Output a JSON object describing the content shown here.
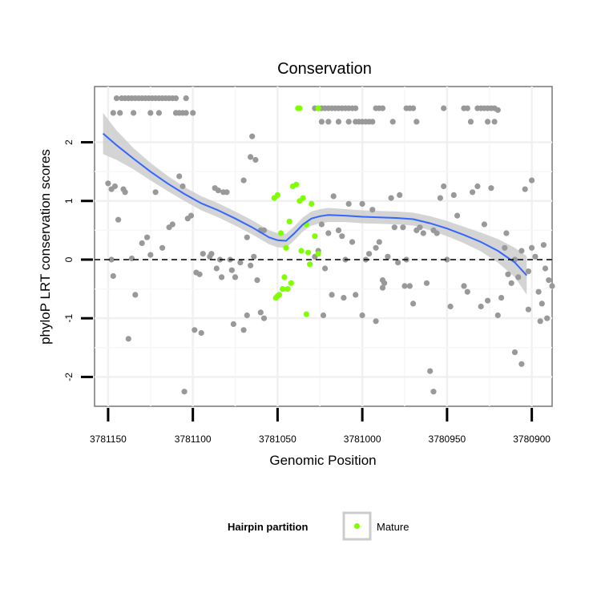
{
  "chart_data": {
    "type": "scatter",
    "title": "Conservation",
    "xlabel": "Genomic Position",
    "ylabel": "phyloP LRT conservation scores",
    "x_reversed": true,
    "xlim": [
      3781158,
      3780888
    ],
    "ylim": [
      -2.5,
      2.95
    ],
    "x_ticks": [
      3781150,
      3781100,
      3781050,
      3781000,
      3780950,
      3780900
    ],
    "x_tick_labels": [
      "3781150",
      "3781100",
      "3781050",
      "3781000",
      "3780950",
      "3780900"
    ],
    "y_ticks": [
      -2,
      -1,
      0,
      1,
      2
    ],
    "y_tick_labels": [
      "-2",
      "-1",
      "0",
      "1",
      "2"
    ],
    "reference_line": 0,
    "grid": true,
    "legend": {
      "title": "Hairpin partition",
      "position": "bottom",
      "entries": [
        {
          "label": "Mature",
          "color": "#7fff00"
        }
      ]
    },
    "colors": {
      "background_points": "#999999",
      "mature_points": "#7fff00",
      "smooth_line": "#3366ff",
      "ribbon": "#cccccc"
    },
    "series": [
      {
        "group": "background",
        "points": [
          [
            3781145,
            2.75
          ],
          [
            3781142,
            2.75
          ],
          [
            3781140,
            2.75
          ],
          [
            3781138,
            2.75
          ],
          [
            3781136,
            2.75
          ],
          [
            3781134,
            2.75
          ],
          [
            3781132,
            2.75
          ],
          [
            3781130,
            2.75
          ],
          [
            3781128,
            2.75
          ],
          [
            3781126,
            2.75
          ],
          [
            3781124,
            2.75
          ],
          [
            3781122,
            2.75
          ],
          [
            3781120,
            2.75
          ],
          [
            3781118,
            2.75
          ],
          [
            3781116,
            2.75
          ],
          [
            3781114,
            2.75
          ],
          [
            3781112,
            2.75
          ],
          [
            3781110,
            2.75
          ],
          [
            3781104,
            2.75
          ],
          [
            3781147,
            2.5
          ],
          [
            3781143,
            2.5
          ],
          [
            3781135,
            2.5
          ],
          [
            3781125,
            2.5
          ],
          [
            3781120,
            2.5
          ],
          [
            3781110,
            2.5
          ],
          [
            3781108,
            2.5
          ],
          [
            3781106,
            2.5
          ],
          [
            3781104,
            2.5
          ],
          [
            3781100,
            2.5
          ],
          [
            3781150,
            1.3
          ],
          [
            3781148,
            1.2
          ],
          [
            3781146,
            1.25
          ],
          [
            3781141,
            1.2
          ],
          [
            3781140,
            1.15
          ],
          [
            3781144,
            0.68
          ],
          [
            3781148,
            0.0
          ],
          [
            3781147,
            -0.28
          ],
          [
            3781136,
            0.02
          ],
          [
            3781134,
            -0.6
          ],
          [
            3781138,
            -1.35
          ],
          [
            3781130,
            0.28
          ],
          [
            3781127,
            0.38
          ],
          [
            3781125,
            0.08
          ],
          [
            3781122,
            1.15
          ],
          [
            3781118,
            0.2
          ],
          [
            3781114,
            0.55
          ],
          [
            3781112,
            0.6
          ],
          [
            3781108,
            1.42
          ],
          [
            3781106,
            1.25
          ],
          [
            3781103,
            0.7
          ],
          [
            3781101,
            0.75
          ],
          [
            3781098,
            -0.22
          ],
          [
            3781096,
            -0.25
          ],
          [
            3781094,
            0.1
          ],
          [
            3781099,
            -1.2
          ],
          [
            3781095,
            -1.25
          ],
          [
            3781090,
            0.05
          ],
          [
            3781089,
            0.1
          ],
          [
            3781087,
            1.22
          ],
          [
            3781085,
            1.18
          ],
          [
            3781082,
            1.15
          ],
          [
            3781080,
            1.15
          ],
          [
            3781078,
            0.0
          ],
          [
            3781077,
            -0.18
          ],
          [
            3781075,
            -0.3
          ],
          [
            3781086,
            -0.15
          ],
          [
            3781084,
            0.0
          ],
          [
            3781083,
            -0.3
          ],
          [
            3781076,
            -1.1
          ],
          [
            3781072,
            -0.05
          ],
          [
            3781070,
            1.35
          ],
          [
            3781068,
            0.38
          ],
          [
            3781066,
            1.75
          ],
          [
            3781065,
            2.1
          ],
          [
            3781063,
            1.7
          ],
          [
            3781060,
            0.5
          ],
          [
            3781058,
            0.5
          ],
          [
            3781060,
            -0.9
          ],
          [
            3781068,
            -0.95
          ],
          [
            3781070,
            -1.2
          ],
          [
            3781064,
            0.05
          ],
          [
            3781066,
            -0.1
          ],
          [
            3781062,
            -0.35
          ],
          [
            3781058,
            -1.0
          ],
          [
            3781105,
            -2.25
          ],
          [
            3781028,
            2.58
          ],
          [
            3781026,
            2.58
          ],
          [
            3781024,
            2.58
          ],
          [
            3781022,
            2.58
          ],
          [
            3781020,
            2.58
          ],
          [
            3781018,
            2.58
          ],
          [
            3781016,
            2.58
          ],
          [
            3781014,
            2.58
          ],
          [
            3781012,
            2.58
          ],
          [
            3781010,
            2.58
          ],
          [
            3781008,
            2.58
          ],
          [
            3781006,
            2.58
          ],
          [
            3781004,
            2.58
          ],
          [
            3780992,
            2.58
          ],
          [
            3780990,
            2.58
          ],
          [
            3780988,
            2.58
          ],
          [
            3780974,
            2.58
          ],
          [
            3780972,
            2.58
          ],
          [
            3780970,
            2.58
          ],
          [
            3780952,
            2.58
          ],
          [
            3780940,
            2.58
          ],
          [
            3780938,
            2.58
          ],
          [
            3780932,
            2.58
          ],
          [
            3780930,
            2.58
          ],
          [
            3780928,
            2.58
          ],
          [
            3780926,
            2.58
          ],
          [
            3780924,
            2.58
          ],
          [
            3780922,
            2.58
          ],
          [
            3780920,
            2.55
          ],
          [
            3781024,
            2.35
          ],
          [
            3781020,
            2.35
          ],
          [
            3781014,
            2.35
          ],
          [
            3781008,
            2.35
          ],
          [
            3781004,
            2.35
          ],
          [
            3781002,
            2.35
          ],
          [
            3781000,
            2.35
          ],
          [
            3780998,
            2.35
          ],
          [
            3780996,
            2.35
          ],
          [
            3780994,
            2.35
          ],
          [
            3780982,
            2.35
          ],
          [
            3780968,
            2.35
          ],
          [
            3780936,
            2.35
          ],
          [
            3780926,
            2.35
          ],
          [
            3780922,
            2.35
          ],
          [
            3781028,
            0.05
          ],
          [
            3781026,
            0.15
          ],
          [
            3781024,
            0.6
          ],
          [
            3781022,
            -0.15
          ],
          [
            3781020,
            0.45
          ],
          [
            3781017,
            1.08
          ],
          [
            3781014,
            0.5
          ],
          [
            3781012,
            0.4
          ],
          [
            3781010,
            0.0
          ],
          [
            3781008,
            0.95
          ],
          [
            3781006,
            0.3
          ],
          [
            3781004,
            -0.6
          ],
          [
            3781000,
            0.95
          ],
          [
            3780998,
            0.0
          ],
          [
            3780996,
            0.1
          ],
          [
            3780994,
            0.85
          ],
          [
            3780992,
            0.2
          ],
          [
            3780990,
            0.3
          ],
          [
            3780988,
            -0.35
          ],
          [
            3780987,
            -0.4
          ],
          [
            3780985,
            0.05
          ],
          [
            3780983,
            1.05
          ],
          [
            3780981,
            0.55
          ],
          [
            3780979,
            -0.05
          ],
          [
            3780978,
            1.1
          ],
          [
            3780976,
            0.55
          ],
          [
            3780975,
            -0.45
          ],
          [
            3780974,
            0.0
          ],
          [
            3780972,
            -0.45
          ],
          [
            3780970,
            -0.75
          ],
          [
            3780968,
            0.5
          ],
          [
            3780966,
            0.55
          ],
          [
            3780964,
            0.45
          ],
          [
            3780962,
            -0.4
          ],
          [
            3780958,
            0.5
          ],
          [
            3780956,
            0.45
          ],
          [
            3780954,
            1.05
          ],
          [
            3780952,
            1.25
          ],
          [
            3780950,
            0.0
          ],
          [
            3780948,
            -0.8
          ],
          [
            3780946,
            1.1
          ],
          [
            3780944,
            0.75
          ],
          [
            3780940,
            -0.45
          ],
          [
            3780938,
            -0.55
          ],
          [
            3780935,
            1.15
          ],
          [
            3780932,
            1.25
          ],
          [
            3780930,
            -0.8
          ],
          [
            3780928,
            0.6
          ],
          [
            3780926,
            -0.7
          ],
          [
            3780924,
            1.22
          ],
          [
            3780920,
            -0.95
          ],
          [
            3780918,
            -0.65
          ],
          [
            3780916,
            0.2
          ],
          [
            3780915,
            0.45
          ],
          [
            3780914,
            -0.25
          ],
          [
            3780912,
            -0.4
          ],
          [
            3780910,
            0.0
          ],
          [
            3780908,
            -0.3
          ],
          [
            3780906,
            0.15
          ],
          [
            3780904,
            1.2
          ],
          [
            3780902,
            -0.2
          ],
          [
            3780900,
            0.2
          ],
          [
            3780898,
            0.05
          ],
          [
            3780896,
            -0.55
          ],
          [
            3780894,
            -0.75
          ],
          [
            3780893,
            0.25
          ],
          [
            3780892,
            -0.15
          ],
          [
            3780890,
            -0.35
          ],
          [
            3780888,
            -0.45
          ],
          [
            3780900,
            1.35
          ],
          [
            3780902,
            -0.85
          ],
          [
            3780910,
            -1.58
          ],
          [
            3780906,
            -1.78
          ],
          [
            3780895,
            -1.05
          ],
          [
            3780891,
            -1.0
          ],
          [
            3781023,
            -0.95
          ],
          [
            3781018,
            -0.6
          ],
          [
            3781011,
            -0.65
          ],
          [
            3781000,
            -0.95
          ],
          [
            3780992,
            -1.05
          ],
          [
            3780988,
            -0.48
          ],
          [
            3780960,
            -1.9
          ],
          [
            3780958,
            -2.25
          ]
        ]
      },
      {
        "group": "Mature",
        "points": [
          [
            3781052,
            1.05
          ],
          [
            3781050,
            1.1
          ],
          [
            3781048,
            0.45
          ],
          [
            3781045,
            0.2
          ],
          [
            3781043,
            0.65
          ],
          [
            3781041,
            1.25
          ],
          [
            3781039,
            1.28
          ],
          [
            3781037,
            1.0
          ],
          [
            3781035,
            1.05
          ],
          [
            3781033,
            0.6
          ],
          [
            3781030,
            0.95
          ],
          [
            3781028,
            0.4
          ],
          [
            3781026,
            0.1
          ],
          [
            3781047,
            -0.5
          ],
          [
            3781049,
            -0.6
          ],
          [
            3781046,
            -0.3
          ],
          [
            3781044,
            -0.5
          ],
          [
            3781042,
            -0.4
          ],
          [
            3781051,
            -0.65
          ],
          [
            3781050,
            -0.62
          ],
          [
            3781036,
            0.15
          ],
          [
            3781032,
            0.12
          ],
          [
            3781031,
            -0.08
          ],
          [
            3781033,
            -0.93
          ],
          [
            3781038,
            2.58
          ],
          [
            3781037,
            2.58
          ],
          [
            3781026,
            2.58
          ]
        ]
      }
    ],
    "smooth": {
      "x": [
        3781153,
        3781145,
        3781135,
        3781125,
        3781115,
        3781105,
        3781095,
        3781085,
        3781075,
        3781065,
        3781055,
        3781050,
        3781045,
        3781040,
        3781035,
        3781030,
        3781025,
        3781020,
        3781010,
        3781000,
        3780990,
        3780980,
        3780970,
        3780960,
        3780950,
        3780940,
        3780930,
        3780920,
        3780910,
        3780903
      ],
      "y": [
        2.15,
        1.95,
        1.72,
        1.5,
        1.3,
        1.12,
        0.96,
        0.84,
        0.7,
        0.55,
        0.38,
        0.33,
        0.32,
        0.45,
        0.6,
        0.7,
        0.74,
        0.76,
        0.75,
        0.73,
        0.72,
        0.71,
        0.69,
        0.62,
        0.53,
        0.42,
        0.3,
        0.15,
        -0.05,
        -0.27
      ],
      "band": [
        0.35,
        0.25,
        0.18,
        0.15,
        0.13,
        0.12,
        0.12,
        0.12,
        0.12,
        0.12,
        0.12,
        0.12,
        0.12,
        0.12,
        0.12,
        0.12,
        0.12,
        0.12,
        0.11,
        0.11,
        0.11,
        0.11,
        0.11,
        0.12,
        0.13,
        0.14,
        0.16,
        0.2,
        0.25,
        0.33
      ]
    }
  }
}
